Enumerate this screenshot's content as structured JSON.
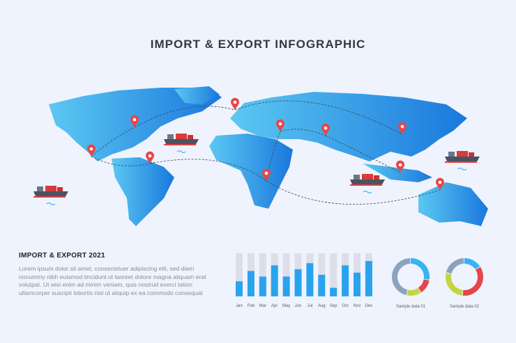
{
  "title": "IMPORT & EXPORT INFOGRAPHIC",
  "section": {
    "heading": "IMPORT & EXPORT 2021",
    "text": "Lorem ipsum dolor sit amet, consectetuer adipiscing elit, sed diam nonummy nibh euismod tincidunt ut laoreet dolore magna aliquam erat volutpat. Ut wisi enim ad minim veniam, quis nostrud exerci tation ullamcorper suscipit lobortis nisl ut aliquip ex ea commodo consequat"
  },
  "colors": {
    "map": "#2a9ae6",
    "bar": "#2aa3ee",
    "bar_track": "#dcdfe7",
    "blue": "#36b3f2",
    "red": "#e5464a",
    "green": "#c4d443",
    "grey": "#8aa3bf",
    "pin": "#e84646"
  },
  "icons": [
    "location-pin-icon",
    "cargo-ship-icon",
    "wave-icon"
  ],
  "chart_data": [
    {
      "type": "bar",
      "categories": [
        "Jan",
        "Feb",
        "Mar",
        "Apr",
        "May",
        "Jun",
        "Jul",
        "Aug",
        "Sep",
        "Oct",
        "Nov",
        "Dec"
      ],
      "values": [
        35,
        59,
        46,
        72,
        46,
        63,
        77,
        50,
        20,
        72,
        55,
        82
      ],
      "ylim": [
        0,
        100
      ]
    },
    {
      "type": "pie",
      "donut": true,
      "label": "Sample data 01",
      "values": [
        28,
        13,
        13,
        46
      ],
      "colors": [
        "#36b3f2",
        "#e5464a",
        "#c4d443",
        "#8aa3bf"
      ]
    },
    {
      "type": "pie",
      "donut": true,
      "label": "Sample data 02",
      "values": [
        16,
        36,
        27,
        21
      ],
      "colors": [
        "#36b3f2",
        "#e5464a",
        "#c4d443",
        "#8aa3bf"
      ]
    }
  ]
}
